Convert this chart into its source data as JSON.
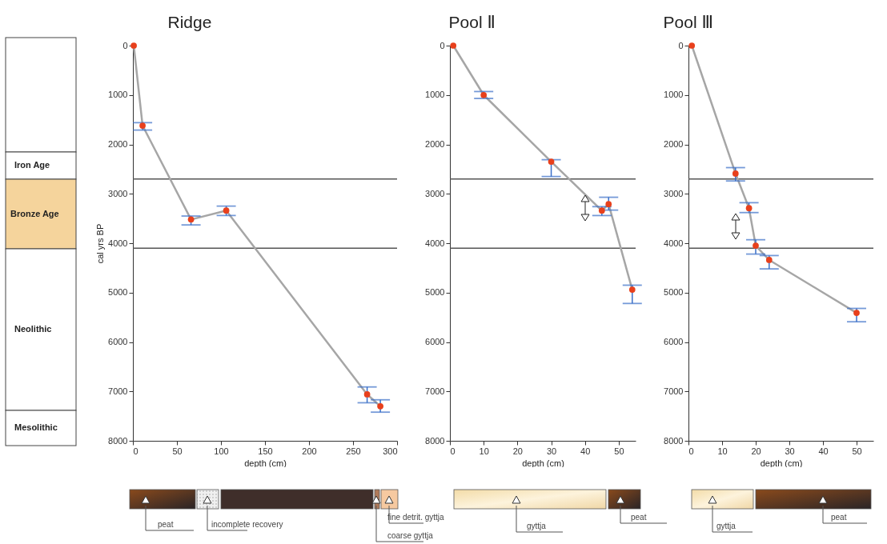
{
  "chart_data": [
    {
      "type": "line",
      "title": "Ridge",
      "xlabel": "depth (cm)",
      "ylabel": "cal yrs BP",
      "x": [
        1,
        11,
        66,
        106,
        266,
        281
      ],
      "xlim": [
        0,
        300
      ],
      "xticks": [
        0,
        50,
        100,
        150,
        200,
        250,
        300
      ],
      "ylim": [
        8000,
        0
      ],
      "yticks": [
        0,
        1000,
        2000,
        3000,
        4000,
        5000,
        6000,
        7000,
        8000
      ],
      "series": [
        {
          "type": "line",
          "color": "#a6a6a6",
          "values": [
            0,
            1620,
            3520,
            3340,
            7060,
            7300
          ]
        },
        {
          "type": "scatter",
          "color": "#e8401c",
          "marker": "circle",
          "values": [
            0,
            1620,
            3520,
            3340,
            7060,
            7300
          ],
          "errors": [
            null,
            [
              1560,
              1710
            ],
            [
              3450,
              3630
            ],
            [
              3250,
              3440
            ],
            [
              6910,
              7230
            ],
            [
              7170,
              7420
            ]
          ]
        }
      ],
      "ref_lines": [
        {
          "axis": "y",
          "value": 2700,
          "color": "#555555"
        },
        {
          "axis": "y",
          "value": 4100,
          "color": "#555555"
        }
      ],
      "annotations": [
        "Iron Age",
        "Bronze Age",
        "Neolithic",
        "Mesolithic",
        "peat",
        "incomplete recovery",
        "coarse gyttja",
        "fine detrit. gyttja"
      ]
    },
    {
      "type": "line",
      "title": "Pool Ⅱ",
      "xlabel": "depth (cm)",
      "x": [
        1,
        10,
        30,
        45,
        47,
        54
      ],
      "xlim": [
        0,
        55
      ],
      "xticks": [
        0,
        10,
        20,
        30,
        40,
        50
      ],
      "ylim": [
        8000,
        0
      ],
      "yticks": [
        0,
        1000,
        2000,
        3000,
        4000,
        5000,
        6000,
        7000,
        8000
      ],
      "series": [
        {
          "type": "line",
          "color": "#a6a6a6",
          "values": [
            0,
            1000,
            2350,
            3340,
            3210,
            4940
          ]
        },
        {
          "type": "scatter",
          "color": "#e8401c",
          "marker": "circle",
          "values": [
            0,
            1000,
            2350,
            3340,
            3210,
            4940
          ],
          "errors": [
            null,
            [
              930,
              1070
            ],
            [
              2310,
              2650
            ],
            [
              3260,
              3440
            ],
            [
              3070,
              3330
            ],
            [
              4850,
              5220
            ]
          ]
        }
      ],
      "ref_lines": [
        {
          "axis": "y",
          "value": 2700,
          "color": "#555555"
        },
        {
          "axis": "y",
          "value": 4100,
          "color": "#555555"
        }
      ],
      "annotations": [
        "gyttja",
        "peat"
      ]
    },
    {
      "type": "line",
      "title": "Pool Ⅲ",
      "xlabel": "depth (cm)",
      "x": [
        1,
        14,
        18,
        20,
        24,
        50
      ],
      "xlim": [
        0,
        55
      ],
      "xticks": [
        0,
        10,
        20,
        30,
        40,
        50
      ],
      "ylim": [
        8000,
        0
      ],
      "yticks": [
        0,
        1000,
        2000,
        3000,
        4000,
        5000,
        6000,
        7000,
        8000
      ],
      "series": [
        {
          "type": "line",
          "color": "#a6a6a6",
          "values": [
            0,
            2590,
            3290,
            4050,
            4340,
            5410
          ]
        },
        {
          "type": "scatter",
          "color": "#e8401c",
          "marker": "circle",
          "values": [
            0,
            2590,
            3290,
            4050,
            4340,
            5410
          ],
          "errors": [
            null,
            [
              2470,
              2740
            ],
            [
              3180,
              3380
            ],
            [
              3930,
              4220
            ],
            [
              4250,
              4520
            ],
            [
              5320,
              5590
            ]
          ]
        }
      ],
      "ref_lines": [
        {
          "axis": "y",
          "value": 2700,
          "color": "#555555"
        },
        {
          "axis": "y",
          "value": 4100,
          "color": "#555555"
        }
      ],
      "annotations": [
        "gyttja",
        "peat"
      ]
    }
  ]
}
